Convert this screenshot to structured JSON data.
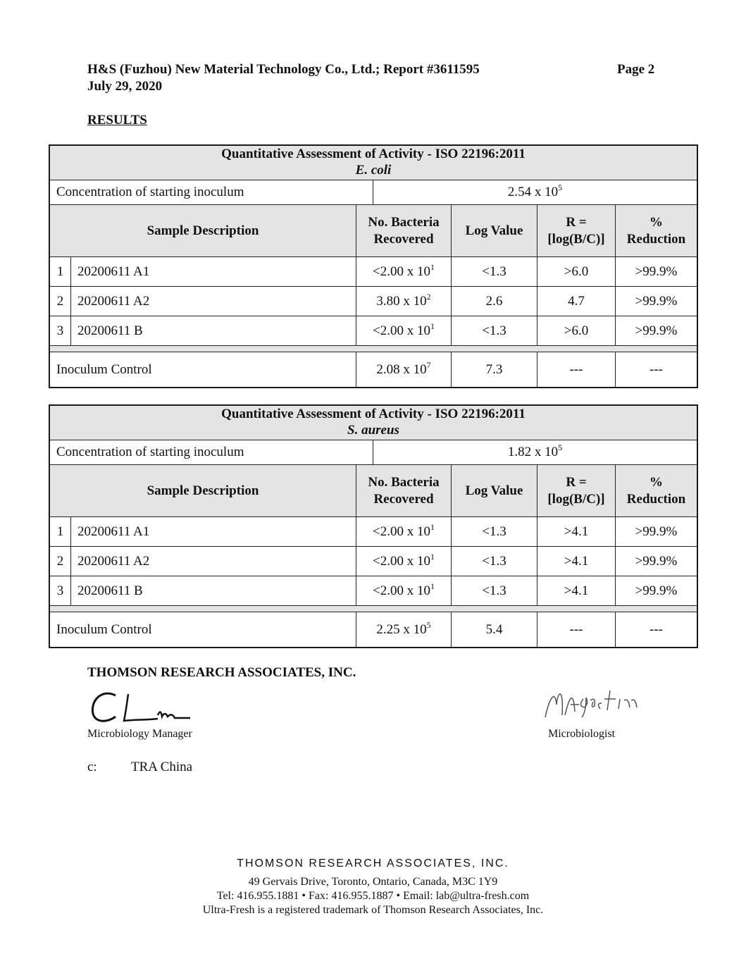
{
  "header": {
    "line1": "H&S (Fuzhou) New Material Technology Co., Ltd.; Report #3611595",
    "page": "Page 2",
    "date": "July 29, 2020"
  },
  "section_title": "RESULTS",
  "tables": [
    {
      "title": "Quantitative Assessment of Activity - ISO 22196:2011",
      "organism": "E. coli",
      "concentration_label": "Concentration of starting inoculum",
      "concentration": {
        "base": "2.54 x 10",
        "exp": "5"
      },
      "columns": [
        [
          "Sample Description"
        ],
        [
          "No. Bacteria",
          "Recovered"
        ],
        [
          "Log Value"
        ],
        [
          "R =",
          "[log(B/C)]"
        ],
        [
          "%",
          "Reduction"
        ]
      ],
      "rows": [
        {
          "index": "1",
          "sample": "20200611 A1",
          "bacteria": {
            "base": "<2.00 x 10",
            "exp": "1"
          },
          "log": "<1.3",
          "r": ">6.0",
          "reduction": ">99.9%"
        },
        {
          "index": "2",
          "sample": "20200611 A2",
          "bacteria": {
            "base": "3.80 x 10",
            "exp": "2"
          },
          "log": "2.6",
          "r": "4.7",
          "reduction": ">99.9%"
        },
        {
          "index": "3",
          "sample": "20200611 B",
          "bacteria": {
            "base": "<2.00 x 10",
            "exp": "1"
          },
          "log": "<1.3",
          "r": ">6.0",
          "reduction": ">99.9%"
        }
      ],
      "control": {
        "label": "Inoculum Control",
        "bacteria": {
          "base": "2.08 x 10",
          "exp": "7"
        },
        "log": "7.3",
        "r": "---",
        "reduction": "---"
      }
    },
    {
      "title": "Quantitative Assessment of Activity - ISO 22196:2011",
      "organism": "S. aureus",
      "concentration_label": "Concentration of starting inoculum",
      "concentration": {
        "base": "1.82 x 10",
        "exp": "5"
      },
      "columns": [
        [
          "Sample Description"
        ],
        [
          "No. Bacteria",
          "Recovered"
        ],
        [
          "Log Value"
        ],
        [
          "R =",
          "[log(B/C)]"
        ],
        [
          "%",
          "Reduction"
        ]
      ],
      "rows": [
        {
          "index": "1",
          "sample": "20200611 A1",
          "bacteria": {
            "base": "<2.00 x 10",
            "exp": "1"
          },
          "log": "<1.3",
          "r": ">4.1",
          "reduction": ">99.9%"
        },
        {
          "index": "2",
          "sample": "20200611 A2",
          "bacteria": {
            "base": "<2.00 x 10",
            "exp": "1"
          },
          "log": "<1.3",
          "r": ">4.1",
          "reduction": ">99.9%"
        },
        {
          "index": "3",
          "sample": "20200611 B",
          "bacteria": {
            "base": "<2.00 x 10",
            "exp": "1"
          },
          "log": "<1.3",
          "r": ">4.1",
          "reduction": ">99.9%"
        }
      ],
      "control": {
        "label": "Inoculum Control",
        "bacteria": {
          "base": "2.25 x 10",
          "exp": "5"
        },
        "log": "5.4",
        "r": "---",
        "reduction": "---"
      }
    }
  ],
  "signatures": {
    "company": "THOMSON RESEARCH ASSOCIATES, INC.",
    "left_title": "Microbiology Manager",
    "right_title": "Microbiologist"
  },
  "cc": {
    "label": "c:",
    "value": "TRA China"
  },
  "footer": {
    "company": "THOMSON RESEARCH ASSOCIATES, INC.",
    "address": "49 Gervais Drive, Toronto, Ontario, Canada, M3C 1Y9",
    "contact": "Tel: 416.955.1881 • Fax: 416.955.1887 • Email: lab@ultra-fresh.com",
    "trademark": "Ultra-Fresh is a registered trademark of Thomson Research Associates, Inc."
  }
}
